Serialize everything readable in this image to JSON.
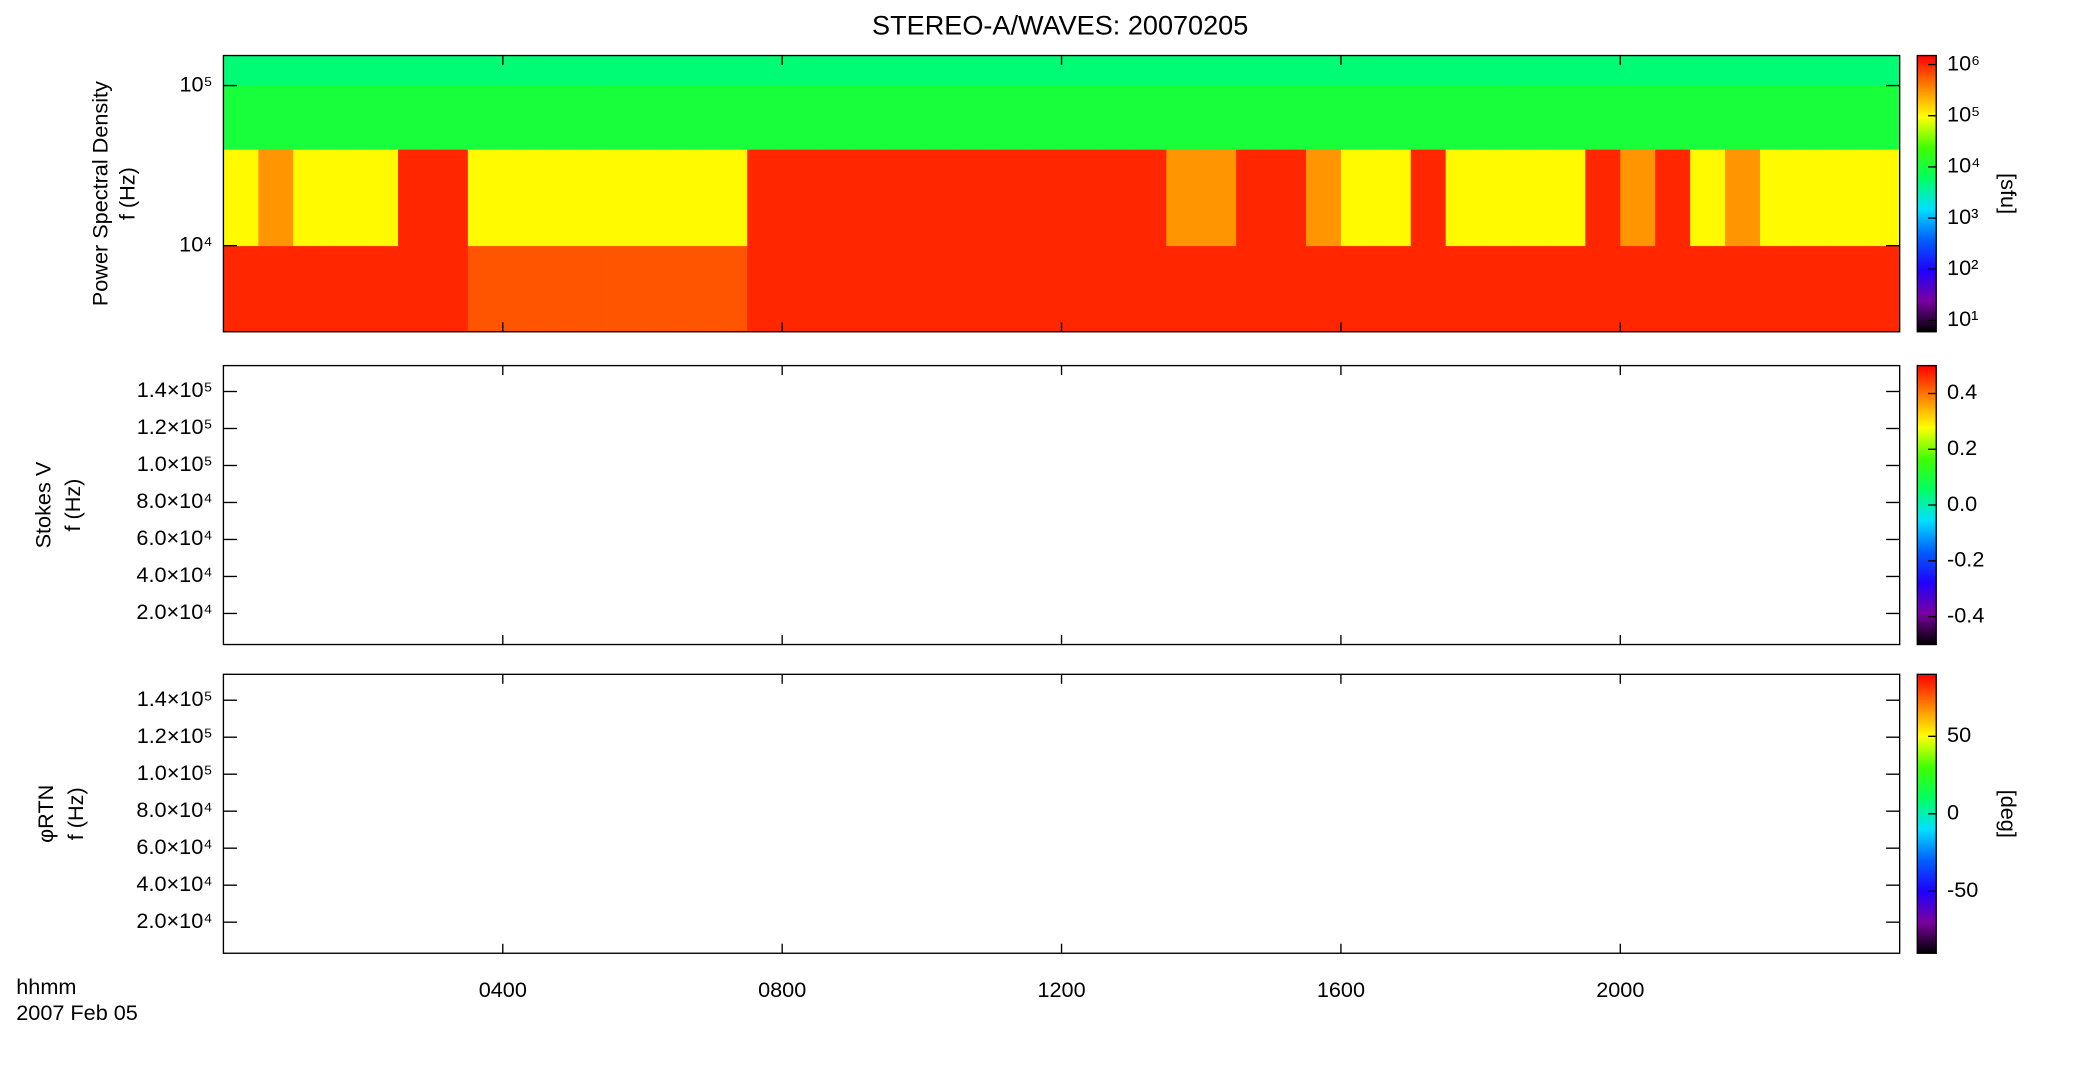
{
  "chart_data": [
    {
      "type": "heatmap",
      "title": "STEREO-A/WAVES: 20070205",
      "ylabel": [
        "Power Spectral Density",
        "f (Hz)"
      ],
      "zlabel": "[sfu]",
      "ylog": true,
      "zlog": true,
      "xlim": [
        0,
        24
      ],
      "xticks": [
        4,
        8,
        12,
        16,
        20
      ],
      "ylim": [
        2900,
        154000
      ],
      "yticks": [
        {
          "value": 10000,
          "label": "10⁴"
        },
        {
          "value": 100000,
          "label": "10⁵"
        }
      ],
      "zlim": [
        6,
        1500000
      ],
      "zticks": [
        {
          "value": 10,
          "label": "10¹"
        },
        {
          "value": 100,
          "label": "10²"
        },
        {
          "value": 1000,
          "label": "10³"
        },
        {
          "value": 10000,
          "label": "10⁴"
        },
        {
          "value": 100000,
          "label": "10⁵"
        },
        {
          "value": 1000000,
          "label": "10⁶"
        }
      ],
      "colormap": [
        "#000000",
        "#7a00a0",
        "#2000ff",
        "#0060ff",
        "#00e0ff",
        "#00ff60",
        "#40ff00",
        "#ffff00",
        "#ff8000",
        "#ff0000"
      ],
      "xbins": [
        0,
        0.5,
        1,
        1.5,
        2,
        2.5,
        3,
        3.5,
        4,
        4.5,
        5,
        5.5,
        6,
        6.5,
        7,
        7.5,
        8,
        8.5,
        9,
        9.5,
        10,
        10.5,
        11,
        11.5,
        12,
        12.5,
        13,
        13.5,
        14,
        14.5,
        15,
        15.5,
        16,
        16.5,
        17,
        17.5,
        18,
        18.5,
        19,
        19.5,
        20,
        20.5,
        21,
        21.5,
        22,
        22.5,
        23,
        23.5,
        24
      ],
      "ybins": [
        2900,
        10000,
        40000,
        100000,
        154000
      ],
      "z": [
        [
          1000000,
          1000000,
          1000000,
          1000000,
          1000000,
          1000000,
          1000000,
          600000,
          600000,
          600000,
          600000,
          600000,
          600000,
          600000,
          600000,
          1000000,
          1000000,
          1000000,
          1000000,
          1000000,
          1000000,
          1000000,
          1000000,
          1000000,
          1000000,
          1000000,
          1000000,
          1000000,
          1000000,
          1000000,
          1000000,
          1000000,
          1000000,
          1000000,
          1000000,
          1000000,
          1000000,
          1000000,
          1000000,
          1000000,
          1000000,
          1000000,
          1000000,
          1000000,
          1000000,
          1000000,
          1000000,
          1000000
        ],
        [
          100000,
          300000,
          100000,
          100000,
          100000,
          1000000,
          1000000,
          100000,
          100000,
          100000,
          100000,
          100000,
          100000,
          100000,
          100000,
          1000000,
          1000000,
          1000000,
          1000000,
          1000000,
          1000000,
          1000000,
          1000000,
          1000000,
          1000000,
          1000000,
          1000000,
          300000,
          300000,
          1000000,
          1000000,
          300000,
          100000,
          100000,
          1000000,
          100000,
          100000,
          100000,
          100000,
          1000000,
          300000,
          1000000,
          100000,
          300000,
          100000,
          100000,
          100000,
          100000
        ],
        [
          10000,
          10000,
          10000,
          10000,
          10000,
          10000,
          10000,
          10000,
          10000,
          10000,
          10000,
          10000,
          10000,
          10000,
          10000,
          10000,
          10000,
          10000,
          10000,
          10000,
          10000,
          10000,
          10000,
          10000,
          10000,
          10000,
          10000,
          10000,
          10000,
          10000,
          10000,
          10000,
          10000,
          10000,
          10000,
          10000,
          10000,
          10000,
          10000,
          10000,
          10000,
          10000,
          10000,
          10000,
          10000,
          10000,
          10000,
          10000
        ],
        [
          5000,
          5000,
          5000,
          5000,
          5000,
          5000,
          5000,
          5000,
          5000,
          5000,
          5000,
          5000,
          5000,
          5000,
          5000,
          5000,
          5000,
          5000,
          5000,
          5000,
          5000,
          5000,
          5000,
          5000,
          5000,
          5000,
          5000,
          5000,
          5000,
          5000,
          5000,
          5000,
          5000,
          5000,
          5000,
          5000,
          5000,
          5000,
          5000,
          5000,
          5000,
          5000,
          5000,
          5000,
          5000,
          5000,
          5000,
          5000
        ]
      ]
    },
    {
      "type": "heatmap",
      "ylabel": [
        "Stokes V",
        "f (Hz)"
      ],
      "ylog": false,
      "zlog": false,
      "xlim": [
        0,
        24
      ],
      "xticks": [
        4,
        8,
        12,
        16,
        20
      ],
      "ylim": [
        3200,
        154000
      ],
      "yticks": [
        {
          "value": 20000,
          "label": "2.0×10⁴"
        },
        {
          "value": 40000,
          "label": "4.0×10⁴"
        },
        {
          "value": 60000,
          "label": "6.0×10⁴"
        },
        {
          "value": 80000,
          "label": "8.0×10⁴"
        },
        {
          "value": 100000,
          "label": "1.0×10⁵"
        },
        {
          "value": 120000,
          "label": "1.2×10⁵"
        },
        {
          "value": 140000,
          "label": "1.4×10⁵"
        }
      ],
      "zlim": [
        -0.5,
        0.5
      ],
      "zticks": [
        -0.4,
        -0.2,
        {
          "value": 0,
          "label": "0.0"
        },
        0.2,
        0.4
      ],
      "colormap": [
        "#000000",
        "#7a00a0",
        "#2000ff",
        "#0060ff",
        "#00e0ff",
        "#00ff60",
        "#40ff00",
        "#ffff00",
        "#ff8000",
        "#ff0000"
      ]
    },
    {
      "type": "heatmap",
      "ylabel": [
        "φRTN",
        "f (Hz)"
      ],
      "zlabel": "[deg]",
      "ylog": false,
      "zlog": false,
      "xlim": [
        0,
        24
      ],
      "xticks": [
        {
          "value": 4,
          "label": "0400"
        },
        {
          "value": 8,
          "label": "0800"
        },
        {
          "value": 12,
          "label": "1200"
        },
        {
          "value": 16,
          "label": "1600"
        },
        {
          "value": 20,
          "label": "2000"
        }
      ],
      "xlabel": "hhmm",
      "date": "2007 Feb 05",
      "ylim": [
        3200,
        154000
      ],
      "yticks": [
        {
          "value": 20000,
          "label": "2.0×10⁴"
        },
        {
          "value": 40000,
          "label": "4.0×10⁴"
        },
        {
          "value": 60000,
          "label": "6.0×10⁴"
        },
        {
          "value": 80000,
          "label": "8.0×10⁴"
        },
        {
          "value": 100000,
          "label": "1.0×10⁵"
        },
        {
          "value": 120000,
          "label": "1.2×10⁵"
        },
        {
          "value": 140000,
          "label": "1.4×10⁵"
        }
      ],
      "zlim": [
        -90,
        90
      ],
      "zticks": [
        -50,
        0,
        50
      ],
      "colormap": [
        "#000000",
        "#7a00a0",
        "#2000ff",
        "#0060ff",
        "#00e0ff",
        "#00ff60",
        "#40ff00",
        "#ffff00",
        "#ff8000",
        "#ff0000"
      ]
    }
  ]
}
